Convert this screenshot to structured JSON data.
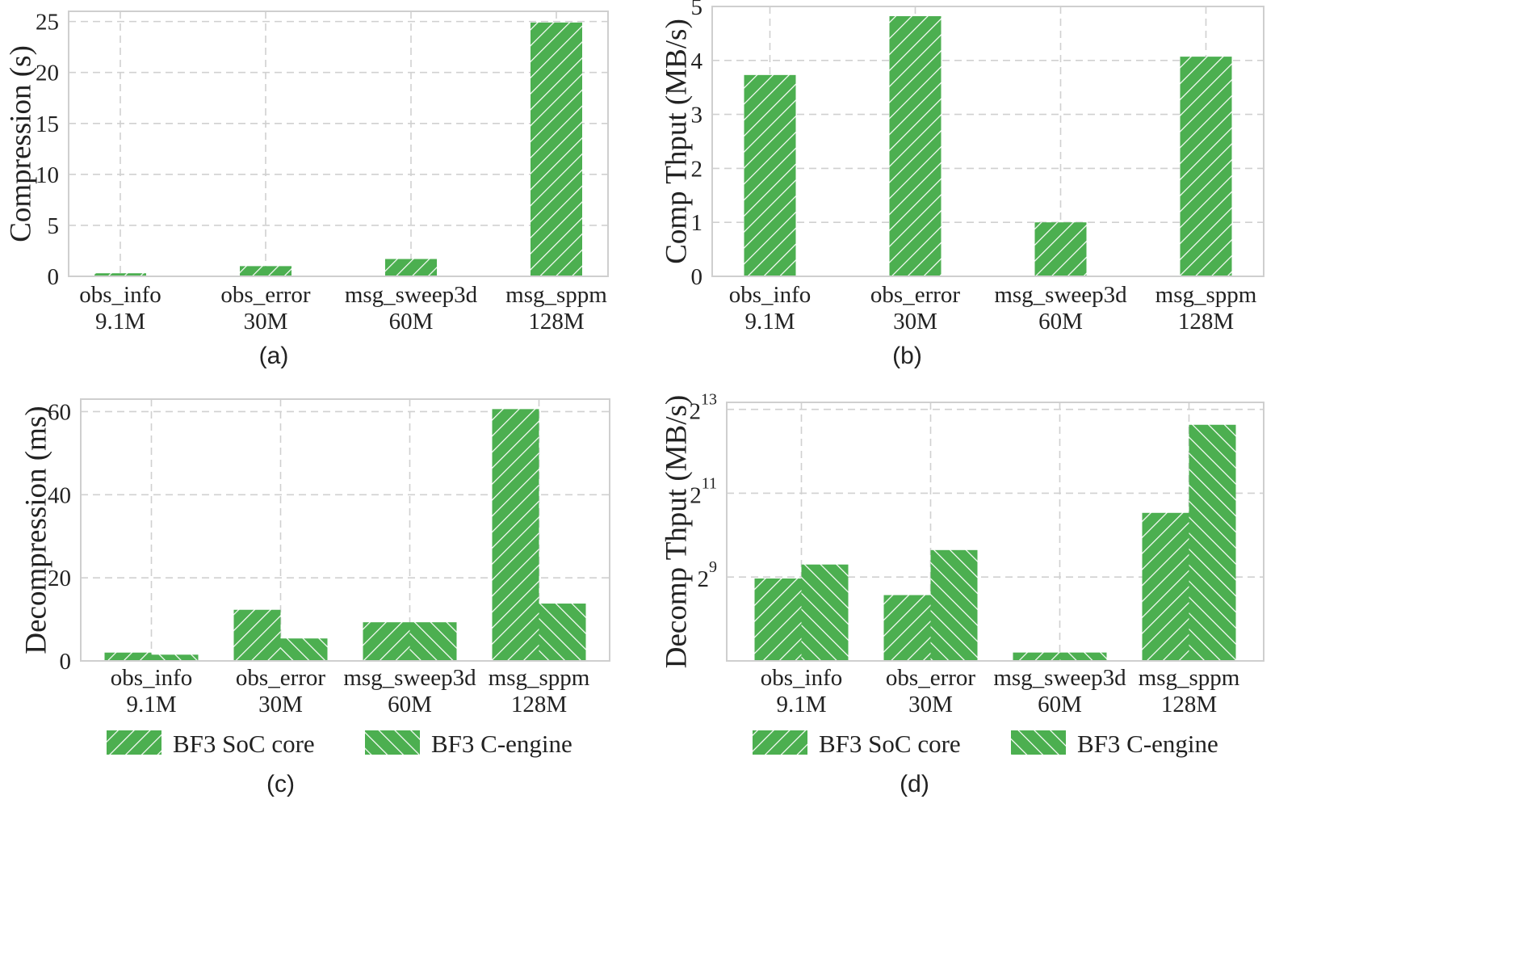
{
  "colors": {
    "bar": "#4caf50",
    "hatch": "#ffffff",
    "grid": "#d0d0d0",
    "frame": "#cfcfcf"
  },
  "legend": [
    "BF3 SoC core",
    "BF3 C-engine"
  ],
  "chart_data": [
    {
      "type": "bar",
      "caption": "(a)",
      "ylabel": "Compression (s)",
      "categories": [
        [
          "obs_info",
          "9.1M"
        ],
        [
          "obs_error",
          "30M"
        ],
        [
          "msg_sweep3d",
          "60M"
        ],
        [
          "msg_sppm",
          "128M"
        ]
      ],
      "series": [
        {
          "name": "BF3 SoC core",
          "values": [
            0.3,
            1.0,
            1.7,
            24.9
          ]
        }
      ],
      "ylim": [
        0,
        26
      ],
      "yticks": [
        0,
        5,
        10,
        15,
        20,
        25
      ],
      "grid": true,
      "legend": "none"
    },
    {
      "type": "bar",
      "caption": "(b)",
      "ylabel": "Comp Thput (MB/s)",
      "categories": [
        [
          "obs_info",
          "9.1M"
        ],
        [
          "obs_error",
          "30M"
        ],
        [
          "msg_sweep3d",
          "60M"
        ],
        [
          "msg_sppm",
          "128M"
        ]
      ],
      "series": [
        {
          "name": "BF3 SoC core",
          "values": [
            3.73,
            4.82,
            1.0,
            4.07
          ]
        }
      ],
      "ylim": [
        0,
        5
      ],
      "yticks": [
        0,
        1,
        2,
        3,
        4,
        5
      ],
      "grid": true,
      "legend": "none"
    },
    {
      "type": "bar",
      "caption": "(c)",
      "ylabel": "Decompression (ms)",
      "categories": [
        [
          "obs_info",
          "9.1M"
        ],
        [
          "obs_error",
          "30M"
        ],
        [
          "msg_sweep3d",
          "60M"
        ],
        [
          "msg_sppm",
          "128M"
        ]
      ],
      "series": [
        {
          "name": "BF3 SoC core",
          "values": [
            2.0,
            12.3,
            9.3,
            60.6
          ]
        },
        {
          "name": "BF3 C-engine",
          "values": [
            1.5,
            5.4,
            9.3,
            13.8
          ]
        }
      ],
      "ylim": [
        0,
        63
      ],
      "yticks": [
        0,
        20,
        40,
        60
      ],
      "grid": true,
      "legend": "bottom"
    },
    {
      "type": "bar",
      "caption": "(d)",
      "ylabel": "Decomp Thput (MB/s)",
      "yscale": "log2",
      "categories": [
        [
          "obs_info",
          "9.1M"
        ],
        [
          "obs_error",
          "30M"
        ],
        [
          "msg_sweep3d",
          "60M"
        ],
        [
          "msg_sppm",
          "128M"
        ]
      ],
      "series": [
        {
          "name": "BF3 SoC core",
          "values": [
            500,
            380,
            147,
            1480
          ]
        },
        {
          "name": "BF3 C-engine",
          "values": [
            630,
            800,
            147,
            6350
          ]
        }
      ],
      "ylim": [
        128,
        9200
      ],
      "yticks": [
        {
          "base": "2",
          "exp": "9",
          "value": 512
        },
        {
          "base": "2",
          "exp": "11",
          "value": 2048
        },
        {
          "base": "2",
          "exp": "13",
          "value": 8192
        }
      ],
      "grid": true,
      "legend": "bottom"
    }
  ]
}
